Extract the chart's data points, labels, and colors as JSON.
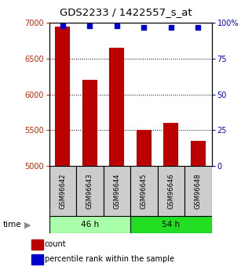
{
  "title": "GDS2233 / 1422557_s_at",
  "samples": [
    "GSM96642",
    "GSM96643",
    "GSM96644",
    "GSM96645",
    "GSM96646",
    "GSM96648"
  ],
  "counts": [
    6950,
    6200,
    6650,
    5500,
    5600,
    5350
  ],
  "percentiles": [
    98,
    98,
    98,
    97,
    97,
    97
  ],
  "groups": [
    {
      "label": "46 h",
      "indices": [
        0,
        1,
        2
      ],
      "color": "#aaffaa"
    },
    {
      "label": "54 h",
      "indices": [
        3,
        4,
        5
      ],
      "color": "#22dd22"
    }
  ],
  "ylim_left": [
    5000,
    7000
  ],
  "ylim_right": [
    0,
    100
  ],
  "yticks_left": [
    5000,
    5500,
    6000,
    6500,
    7000
  ],
  "yticks_right": [
    0,
    25,
    50,
    75,
    100
  ],
  "bar_color": "#bb0000",
  "dot_color": "#0000cc",
  "bg_color": "#ffffff",
  "title_fontsize": 9.5,
  "tick_label_color_left": "#cc2200",
  "tick_label_color_right": "#0000cc",
  "bar_width": 0.55,
  "sample_box_color": "#cccccc",
  "grid_color": "#000000",
  "time_label": "time",
  "legend_count": "count",
  "legend_pct": "percentile rank within the sample"
}
